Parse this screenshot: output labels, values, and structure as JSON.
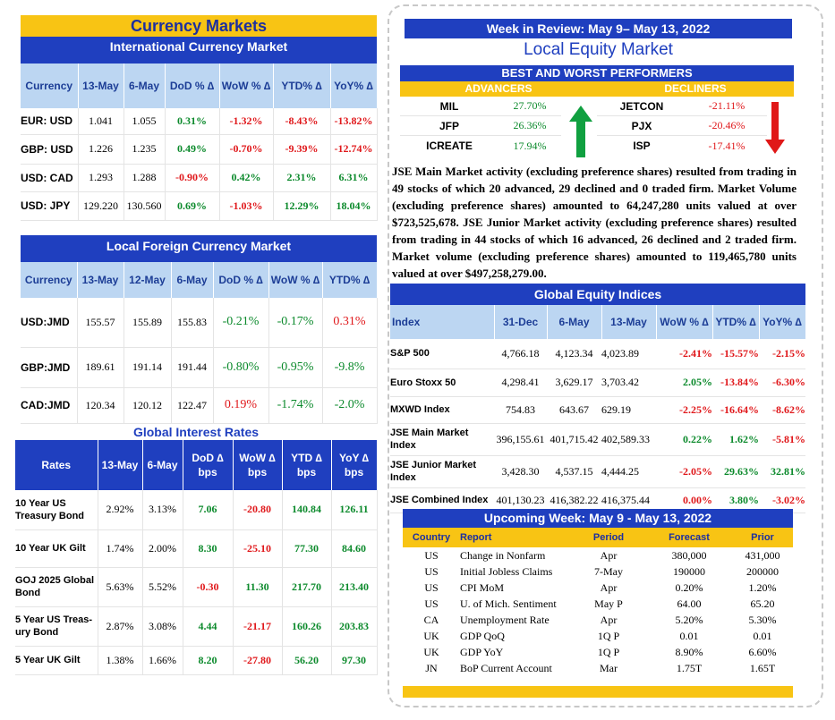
{
  "currency": {
    "title": "Currency Markets",
    "intl_title": "International Currency Market",
    "intl_headers": [
      "Currency",
      "13-May",
      "6-May",
      "DoD % ∆",
      "WoW % ∆",
      "YTD% ∆",
      "YoY% ∆"
    ],
    "intl_rows": [
      [
        "EUR: USD",
        "1.041",
        "1.055",
        "0.31%",
        "-1.32%",
        "-8.43%",
        "-13.82%"
      ],
      [
        "GBP: USD",
        "1.226",
        "1.235",
        "0.49%",
        "-0.70%",
        "-9.39%",
        "-12.74%"
      ],
      [
        "USD: CAD",
        "1.293",
        "1.288",
        "-0.90%",
        "0.42%",
        "2.31%",
        "6.31%"
      ],
      [
        "USD: JPY",
        "129.220",
        "130.560",
        "0.69%",
        "-1.03%",
        "12.29%",
        "18.04%"
      ]
    ],
    "local_title": "Local Foreign Currency Market",
    "local_headers": [
      "Currency",
      "13-May",
      "12-May",
      "6-May",
      "DoD % ∆",
      "WoW % ∆",
      "YTD% ∆"
    ],
    "local_rows": [
      [
        "USD:JMD",
        "155.57",
        "155.89",
        "155.83",
        "-0.21%",
        "-0.17%",
        "0.31%"
      ],
      [
        "GBP:JMD",
        "189.61",
        "191.14",
        "191.44",
        "-0.80%",
        "-0.95%",
        "-9.8%"
      ],
      [
        "CAD:JMD",
        "120.34",
        "120.12",
        "122.47",
        "0.19%",
        "-1.74%",
        "-2.0%"
      ]
    ]
  },
  "rates": {
    "title": "Global Interest Rates",
    "headers": [
      "Rates",
      "13-May",
      "6-May",
      "DoD ∆ bps",
      "WoW ∆ bps",
      "YTD ∆ bps",
      "YoY ∆ bps"
    ],
    "rows": [
      [
        "10 Year US Treasury Bond",
        "2.92%",
        "3.13%",
        "7.06",
        "-20.80",
        "140.84",
        "126.11"
      ],
      [
        "10 Year UK Gilt",
        "1.74%",
        "2.00%",
        "8.30",
        "-25.10",
        "77.30",
        "84.60"
      ],
      [
        "GOJ 2025 Global Bond",
        "5.63%",
        "5.52%",
        "-0.30",
        "11.30",
        "217.70",
        "213.40"
      ],
      [
        "5 Year US Treas-ury Bond",
        "2.87%",
        "3.08%",
        "4.44",
        "-21.17",
        "160.26",
        "203.83"
      ],
      [
        "5 Year UK Gilt",
        "1.38%",
        "1.66%",
        "8.20",
        "-27.80",
        "56.20",
        "97.30"
      ]
    ]
  },
  "review": {
    "title": "Week in Review:  May 9– May 13, 2022",
    "subtitle": "Local Equity Market",
    "bw_title": "BEST AND WORST PERFORMERS",
    "adv_label": "ADVANCERS",
    "dec_label": "DECLINERS",
    "advancers": [
      [
        "MIL",
        "27.70%"
      ],
      [
        "JFP",
        "26.36%"
      ],
      [
        "ICREATE",
        "17.94%"
      ]
    ],
    "decliners": [
      [
        "JETCON",
        "-21.11%"
      ],
      [
        "PJX",
        "-20.46%"
      ],
      [
        "ISP",
        "-17.41%"
      ]
    ],
    "paragraph": "JSE Main Market activity (excluding preference shares) resulted from trading in 49 stocks of which 20 advanced, 29 declined and 0 traded firm. Market Volume (excluding preference shares) amounted to 64,247,280 units valued at over $723,525,678. JSE Junior Market activity (excluding preference shares) resulted from trading in 44 stocks of which 16 advanced, 26 declined and 2 traded firm. Market volume (excluding preference shares) amounted to 119,465,780 units valued at over $497,258,279.00."
  },
  "indices": {
    "title": "Global Equity Indices",
    "headers": [
      "Index",
      "31-Dec",
      "6-May",
      "13-May",
      "WoW % ∆",
      "YTD% ∆",
      "YoY% ∆"
    ],
    "rows": [
      [
        "S&P 500",
        "4,766.18",
        "4,123.34",
        "4,023.89",
        "-2.41%",
        "-15.57%",
        "-2.15%"
      ],
      [
        "Euro Stoxx 50",
        "4,298.41",
        "3,629.17",
        "3,703.42",
        "2.05%",
        "-13.84%",
        "-6.30%"
      ],
      [
        "MXWD  Index",
        "754.83",
        "643.67",
        "629.19",
        "-2.25%",
        "-16.64%",
        "-8.62%"
      ],
      [
        "JSE Main Market Index",
        "396,155.61",
        "401,715.42",
        "402,589.33",
        "0.22%",
        "1.62%",
        "-5.81%"
      ],
      [
        "JSE Junior Market Index",
        "3,428.30",
        "4,537.15",
        "4,444.25",
        "-2.05%",
        "29.63%",
        "32.81%"
      ],
      [
        "JSE Combined Index",
        "401,130.23",
        "416,382.22",
        "416,375.44",
        "0.00%",
        "3.80%",
        "-3.02%"
      ]
    ]
  },
  "upcoming": {
    "title": "Upcoming Week:  May 9 - May 13, 2022",
    "headers": [
      "Country",
      "Report",
      "Period",
      "Forecast",
      "Prior"
    ],
    "rows": [
      [
        "US",
        "Change in Nonfarm",
        "Apr",
        "380,000",
        "431,000"
      ],
      [
        "US",
        "Initial Jobless Claims",
        "7-May",
        "190000",
        "200000"
      ],
      [
        "US",
        "CPI MoM",
        "Apr",
        "0.20%",
        "1.20%"
      ],
      [
        "US",
        "U. of Mich. Sentiment",
        "May P",
        "64.00",
        "65.20"
      ],
      [
        "CA",
        "Unemployment Rate",
        "Apr",
        "5.20%",
        "5.30%"
      ],
      [
        "UK",
        "GDP QoQ",
        "1Q P",
        "0.01",
        "0.01"
      ],
      [
        "UK",
        "GDP YoY",
        "1Q P",
        "8.90%",
        "6.60%"
      ],
      [
        "JN",
        "BoP Current Account",
        "Mar",
        "1.75T",
        "1.65T"
      ]
    ]
  },
  "colors": {
    "navy": "#1f3fbf",
    "yellow": "#f8c414",
    "light_blue": "#bcd6f2",
    "positive": "#0c8a2c",
    "negative": "#e0181b"
  }
}
